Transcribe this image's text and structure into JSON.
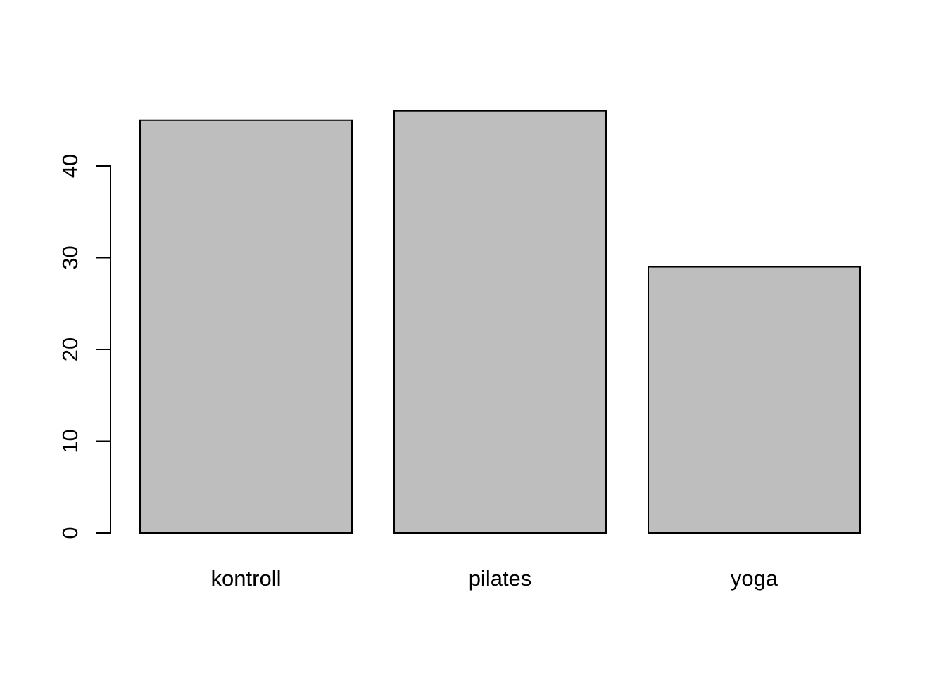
{
  "chart_data": {
    "type": "bar",
    "title": "",
    "xlabel": "",
    "ylabel": "",
    "categories": [
      "kontroll",
      "pilates",
      "yoga"
    ],
    "values": [
      45,
      46,
      29
    ],
    "ylim": [
      0,
      46
    ],
    "yticks": [
      0,
      10,
      20,
      30,
      40
    ],
    "ytick_labels": [
      "0",
      "10",
      "20",
      "30",
      "40"
    ],
    "grid": false,
    "legend": "none",
    "bar_color": "#bebebe",
    "border_color": "#000000"
  }
}
